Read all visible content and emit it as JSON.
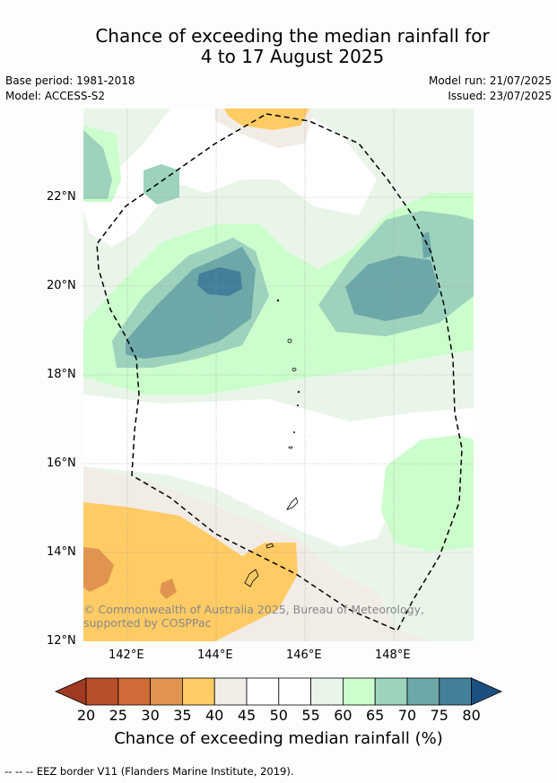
{
  "title_line1": "Chance of exceeding the median rainfall for",
  "title_line2": "4 to 17 August 2025",
  "base_period": "Base period: 1981-2018",
  "model": "Model: ACCESS-S2",
  "model_run": "Model run: 21/07/2025",
  "issued": "Issued: 23/07/2025",
  "lat_ticks": [
    "22°N",
    "20°N",
    "18°N",
    "16°N",
    "14°N",
    "12°N"
  ],
  "lon_ticks": [
    "142°E",
    "144°E",
    "146°E",
    "148°E"
  ],
  "credit": "© Commonwealth of Australia 2025, Bureau of Meteorology, supported by COSPPac",
  "colorbar": {
    "labels": [
      "20",
      "25",
      "30",
      "35",
      "40",
      "45",
      "50",
      "55",
      "60",
      "65",
      "70",
      "75",
      "80"
    ],
    "title": "Chance of exceeding median rainfall (%)",
    "colors": [
      "#a03a22",
      "#b84f2b",
      "#d06a36",
      "#e09450",
      "#fecb65",
      "#f2ece6",
      "#ffffff",
      "#ffffff",
      "#eaf5ea",
      "#ccfdcc",
      "#9dd3bd",
      "#6ea7a8",
      "#437f9b",
      "#1b4f7f"
    ]
  },
  "footnote": "--  --  -- EEZ border V11 (Flanders Marine Institute, 2019)."
}
